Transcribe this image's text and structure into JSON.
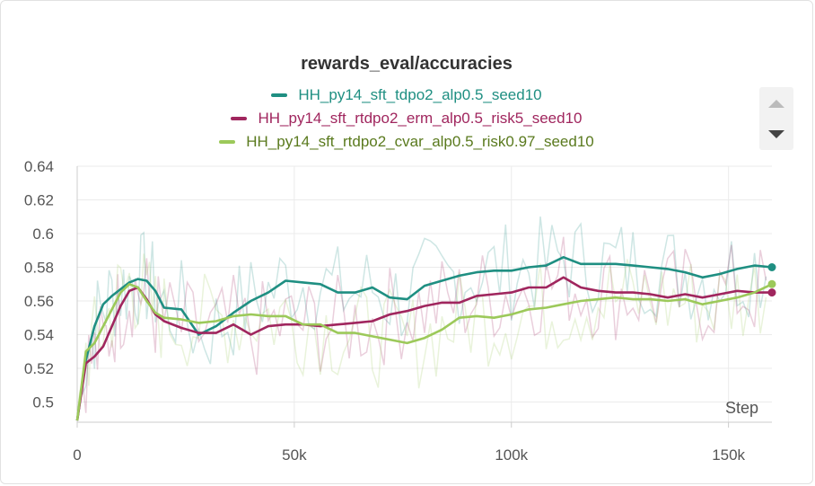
{
  "chart_data": {
    "type": "line",
    "title": "rewards_eval/accuracies",
    "xlabel": "Step",
    "ylabel": "",
    "xlim": [
      0,
      160000
    ],
    "ylim": [
      0.488,
      0.64
    ],
    "x_ticks": [
      0,
      50000,
      100000,
      150000
    ],
    "x_tick_labels": [
      "0",
      "50k",
      "100k",
      "150k"
    ],
    "y_ticks": [
      0.5,
      0.52,
      0.54,
      0.56,
      0.58,
      0.6,
      0.62,
      0.64
    ],
    "y_tick_labels": [
      "0.5",
      "0.52",
      "0.54",
      "0.56",
      "0.58",
      "0.6",
      "0.62",
      "0.64"
    ],
    "grid": "horizontal and vertical",
    "legend_position": "top-center",
    "x": [
      0,
      2000,
      4000,
      6000,
      8000,
      10000,
      12000,
      14000,
      16000,
      18000,
      20000,
      24000,
      28000,
      32000,
      36000,
      40000,
      44000,
      48000,
      52000,
      56000,
      60000,
      64000,
      68000,
      72000,
      76000,
      80000,
      84000,
      88000,
      92000,
      96000,
      100000,
      104000,
      108000,
      112000,
      116000,
      120000,
      124000,
      128000,
      132000,
      136000,
      140000,
      144000,
      148000,
      152000,
      156000,
      160000
    ],
    "series": [
      {
        "name": "HH_py14_sft_tdpo2_alp0.5_seed10",
        "color": "#1f8f82",
        "values": [
          0.489,
          0.525,
          0.545,
          0.558,
          0.563,
          0.567,
          0.571,
          0.573,
          0.572,
          0.566,
          0.556,
          0.555,
          0.54,
          0.545,
          0.553,
          0.56,
          0.565,
          0.572,
          0.571,
          0.57,
          0.565,
          0.565,
          0.568,
          0.562,
          0.561,
          0.569,
          0.572,
          0.575,
          0.577,
          0.578,
          0.578,
          0.58,
          0.581,
          0.586,
          0.582,
          0.582,
          0.582,
          0.581,
          0.58,
          0.579,
          0.577,
          0.574,
          0.576,
          0.579,
          0.581,
          0.58
        ]
      },
      {
        "name": "HH_py14_sft_rtdpo2_erm_alp0.5_risk5_seed10",
        "color": "#a0265e",
        "values": [
          0.489,
          0.523,
          0.527,
          0.533,
          0.545,
          0.557,
          0.566,
          0.568,
          0.561,
          0.552,
          0.548,
          0.544,
          0.541,
          0.541,
          0.546,
          0.54,
          0.545,
          0.546,
          0.546,
          0.545,
          0.546,
          0.547,
          0.548,
          0.552,
          0.554,
          0.557,
          0.559,
          0.559,
          0.563,
          0.564,
          0.565,
          0.568,
          0.568,
          0.574,
          0.568,
          0.566,
          0.565,
          0.565,
          0.564,
          0.562,
          0.564,
          0.562,
          0.564,
          0.566,
          0.565,
          0.565
        ]
      },
      {
        "name": "HH_py14_sft_rtdpo2_cvar_alp0.5_risk0.97_seed10",
        "color": "#9cc95a",
        "values": [
          0.489,
          0.53,
          0.535,
          0.545,
          0.555,
          0.565,
          0.57,
          0.568,
          0.56,
          0.553,
          0.55,
          0.549,
          0.547,
          0.548,
          0.551,
          0.552,
          0.551,
          0.551,
          0.546,
          0.546,
          0.541,
          0.541,
          0.539,
          0.537,
          0.535,
          0.538,
          0.543,
          0.55,
          0.551,
          0.55,
          0.552,
          0.555,
          0.556,
          0.558,
          0.56,
          0.561,
          0.562,
          0.561,
          0.561,
          0.56,
          0.561,
          0.558,
          0.56,
          0.562,
          0.565,
          0.57
        ]
      }
    ]
  },
  "legend_scroll": {
    "up_icon": "triangle-up-icon",
    "down_icon": "triangle-down-icon"
  }
}
